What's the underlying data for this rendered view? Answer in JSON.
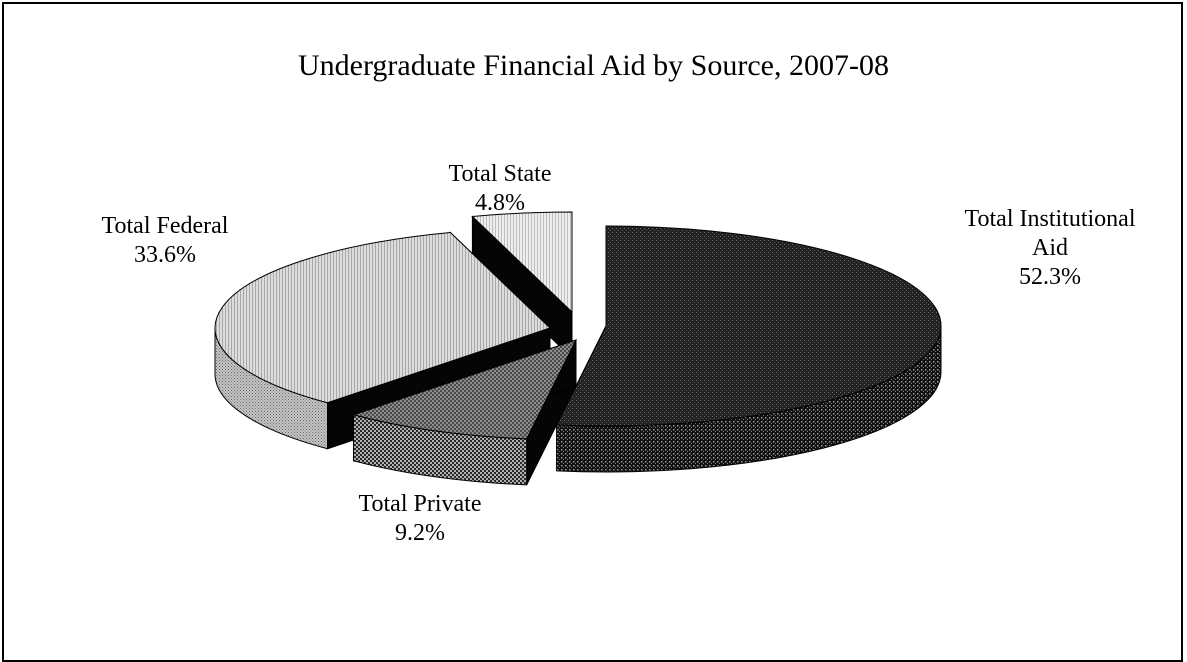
{
  "chart_data": {
    "type": "pie",
    "title": "Undergraduate Financial Aid by Source, 2007-08",
    "slices": [
      {
        "label": "Total Institutional Aid",
        "label_lines": [
          "Total Institutional",
          "Aid"
        ],
        "value": 52.3,
        "value_label": "52.3%",
        "color": "#2e2e2e",
        "pattern": "dark-dots"
      },
      {
        "label": "Total Private",
        "label_lines": [
          "Total Private"
        ],
        "value": 9.2,
        "value_label": "9.2%",
        "color": "#6e6e6e",
        "pattern": "mid-checker"
      },
      {
        "label": "Total Federal",
        "label_lines": [
          "Total Federal"
        ],
        "value": 33.6,
        "value_label": "33.6%",
        "color": "#c8c8c8",
        "pattern": "light-lines"
      },
      {
        "label": "Total State",
        "label_lines": [
          "Total State"
        ],
        "value": 4.8,
        "value_label": "4.8%",
        "color": "#e6e6e6",
        "pattern": "light-hatch"
      }
    ],
    "three_d": true,
    "exploded": true,
    "legend": "none"
  }
}
